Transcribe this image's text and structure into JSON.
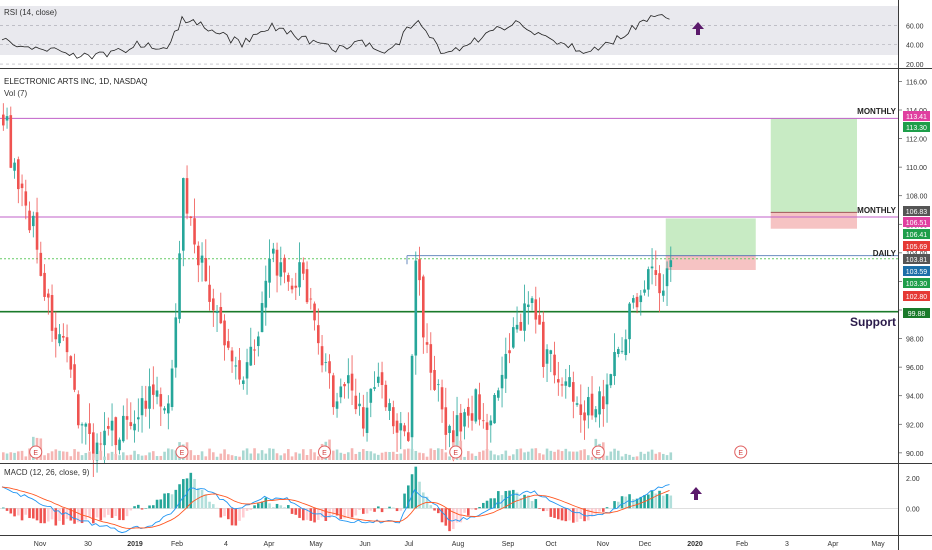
{
  "chart_data": {
    "type": "candlestick",
    "symbol_title": "ELECTRONIC ARTS INC, 1D, NASDAQ",
    "volume_label": "Vol (7)",
    "rsi_label": "RSI (14, close)",
    "macd_label": "MACD (12, 26, close, 9)",
    "price_axis": {
      "ticks": [
        "116.00",
        "114.00",
        "112.00",
        "110.00",
        "108.00",
        "106.00",
        "104.00",
        "102.00",
        "100.00",
        "98.00",
        "96.00",
        "94.00",
        "92.00",
        "90.00"
      ],
      "ylim": [
        89.5,
        116.8
      ]
    },
    "rsi_axis": {
      "ticks": [
        "60.00",
        "40.00",
        "20.00"
      ],
      "ylim": [
        18,
        80
      ]
    },
    "macd_axis": {
      "ticks": [
        "2.00",
        "0.00"
      ],
      "ylim": [
        -1.7,
        2.8
      ]
    },
    "x_ticks": [
      "Nov",
      "30",
      "2019",
      "Feb",
      "4",
      "Apr",
      "May",
      "Jun",
      "Jul",
      "Aug",
      "Sep",
      "Oct",
      "Nov",
      "Dec",
      "2020",
      "Feb",
      "3",
      "Apr",
      "May"
    ],
    "annotations": [
      {
        "text": "MONTHLY",
        "price": 113.41
      },
      {
        "text": "MONTHLY",
        "price": 106.83
      },
      {
        "text": "DAILY",
        "price": 103.81
      },
      {
        "text": "Support",
        "price": 99.88
      }
    ],
    "price_labels": [
      {
        "text": "113.41",
        "color": "#e040a0"
      },
      {
        "text": "113.30",
        "color": "#1e9e4a"
      },
      {
        "text": "106.83",
        "color": "#555555"
      },
      {
        "text": "106.51",
        "color": "#e040a0"
      },
      {
        "text": "106.41",
        "color": "#1e9e4a"
      },
      {
        "text": "105.69",
        "color": "#e53935"
      },
      {
        "text": "103.81",
        "color": "#555555"
      },
      {
        "text": "103.59",
        "color": "#1c6fa8"
      },
      {
        "text": "103.30",
        "color": "#1e9e4a"
      },
      {
        "text": "102.80",
        "color": "#e53935"
      },
      {
        "text": "99.88",
        "color": "#1a7a2a"
      }
    ],
    "levels": [
      {
        "price": 113.41,
        "color": "#c060c8"
      },
      {
        "price": 106.51,
        "color": "#c060c8"
      },
      {
        "price": 103.81,
        "color": "#6a8bbf"
      },
      {
        "price": 103.59,
        "color": "#66cc66"
      },
      {
        "price": 99.88,
        "color": "#1a7a2a"
      }
    ],
    "trade_boxes": [
      {
        "entry": 106.83,
        "target": 113.41,
        "stop": 105.69
      },
      {
        "entry": 103.81,
        "target": 106.41,
        "stop": 102.8
      }
    ],
    "earnings_marker": "E",
    "colors": {
      "up": "#26a69a",
      "down": "#ef5350",
      "macd": "#2196f3",
      "signal": "#ff5722",
      "arrow": "#5b1a6b"
    },
    "anchors": [
      [
        0,
        114
      ],
      [
        4,
        108
      ],
      [
        8,
        106
      ],
      [
        12,
        100
      ],
      [
        16,
        97
      ],
      [
        20,
        93
      ],
      [
        24,
        90.5
      ],
      [
        28,
        91
      ],
      [
        32,
        92
      ],
      [
        36,
        93
      ],
      [
        40,
        94
      ],
      [
        44,
        92.5
      ],
      [
        48,
        108.5
      ],
      [
        52,
        104
      ],
      [
        56,
        100
      ],
      [
        60,
        97
      ],
      [
        64,
        95.5
      ],
      [
        68,
        99
      ],
      [
        72,
        104
      ],
      [
        76,
        101
      ],
      [
        80,
        103
      ],
      [
        84,
        97
      ],
      [
        88,
        94
      ],
      [
        92,
        95
      ],
      [
        96,
        92.5
      ],
      [
        100,
        95
      ],
      [
        104,
        92
      ],
      [
        108,
        90.8
      ],
      [
        110,
        103.5
      ],
      [
        113,
        97
      ],
      [
        116,
        94
      ],
      [
        118,
        90.8
      ],
      [
        122,
        92
      ],
      [
        126,
        93.5
      ],
      [
        130,
        92
      ],
      [
        136,
        98
      ],
      [
        140,
        101
      ],
      [
        144,
        97
      ],
      [
        150,
        95
      ],
      [
        156,
        93
      ],
      [
        160,
        94
      ],
      [
        166,
        99
      ],
      [
        172,
        103
      ],
      [
        176,
        101
      ],
      [
        178,
        103.6
      ]
    ],
    "rsi_anchors": [
      [
        0,
        46
      ],
      [
        10,
        35
      ],
      [
        20,
        29
      ],
      [
        28,
        28
      ],
      [
        36,
        40
      ],
      [
        44,
        35
      ],
      [
        48,
        66
      ],
      [
        56,
        55
      ],
      [
        64,
        40
      ],
      [
        72,
        58
      ],
      [
        80,
        48
      ],
      [
        88,
        36
      ],
      [
        96,
        42
      ],
      [
        104,
        33
      ],
      [
        110,
        65
      ],
      [
        118,
        30
      ],
      [
        126,
        45
      ],
      [
        136,
        62
      ],
      [
        144,
        50
      ],
      [
        150,
        38
      ],
      [
        156,
        34
      ],
      [
        162,
        42
      ],
      [
        168,
        56
      ],
      [
        172,
        66
      ],
      [
        178,
        70
      ]
    ],
    "macd_anchors": [
      [
        0,
        1.4
      ],
      [
        8,
        0.6
      ],
      [
        16,
        -0.3
      ],
      [
        24,
        -1
      ],
      [
        32,
        -1.5
      ],
      [
        40,
        -1.1
      ],
      [
        46,
        -0.2
      ],
      [
        50,
        1.3
      ],
      [
        56,
        1.1
      ],
      [
        62,
        -0.1
      ],
      [
        70,
        0.7
      ],
      [
        76,
        0.6
      ],
      [
        84,
        -0.4
      ],
      [
        92,
        -0.8
      ],
      [
        100,
        -0.9
      ],
      [
        106,
        -0.9
      ],
      [
        110,
        1.1
      ],
      [
        116,
        0.2
      ],
      [
        120,
        -0.9
      ],
      [
        128,
        -0.4
      ],
      [
        136,
        0.9
      ],
      [
        142,
        1.1
      ],
      [
        148,
        0.2
      ],
      [
        156,
        -0.6
      ],
      [
        162,
        -0.2
      ],
      [
        168,
        0.5
      ],
      [
        172,
        1
      ],
      [
        178,
        1.6
      ]
    ],
    "earnings_bars": [
      9,
      48,
      86,
      121,
      159
    ],
    "future_earnings_bar": 197
  }
}
